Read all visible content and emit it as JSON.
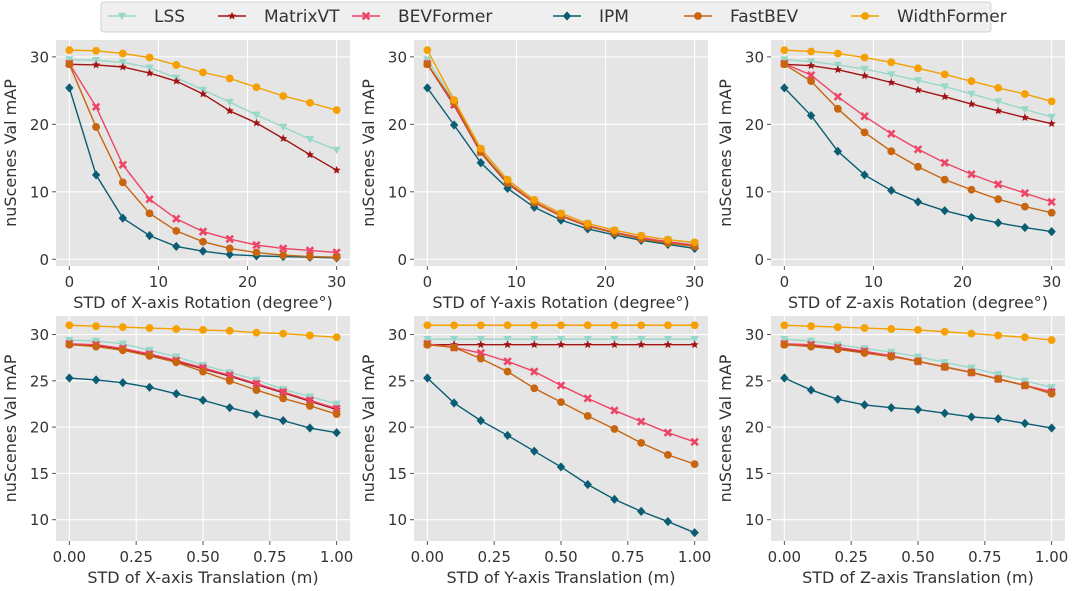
{
  "legend": [
    {
      "name": "LSS",
      "color": "#99d8c9",
      "marker": "triangle-down"
    },
    {
      "name": "MatrixVT",
      "color": "#a01414",
      "marker": "star"
    },
    {
      "name": "BEVFormer",
      "color": "#ee4466",
      "marker": "x"
    },
    {
      "name": "IPM",
      "color": "#0b5d73",
      "marker": "diamond"
    },
    {
      "name": "FastBEV",
      "color": "#c8650f",
      "marker": "circle"
    },
    {
      "name": "WidthFormer",
      "color": "#f5a000",
      "marker": "circle"
    }
  ],
  "chart_data": [
    {
      "type": "line",
      "xlabel": "STD of X-axis Rotation (degree°)",
      "ylabel": "nuScenes Val mAP",
      "x": [
        0,
        3,
        6,
        9,
        12,
        15,
        18,
        21,
        24,
        27,
        30
      ],
      "xticks": [
        0,
        10,
        20,
        30
      ],
      "xtick_labels": [
        "0",
        "10",
        "20",
        "30"
      ],
      "xlim": [
        -1.5,
        31.5
      ],
      "yticks": [
        0,
        10,
        20,
        30
      ],
      "ylim": [
        -1,
        32.5
      ],
      "grid": true,
      "series": [
        {
          "name": "LSS",
          "values": [
            29.6,
            29.5,
            29.2,
            28.4,
            26.9,
            25.1,
            23.3,
            21.4,
            19.6,
            17.8,
            16.2
          ]
        },
        {
          "name": "MatrixVT",
          "values": [
            28.9,
            28.8,
            28.5,
            27.6,
            26.4,
            24.5,
            22.0,
            20.2,
            17.9,
            15.5,
            13.2
          ]
        },
        {
          "name": "BEVFormer",
          "values": [
            29.0,
            22.6,
            14.0,
            8.9,
            6.0,
            4.1,
            3.0,
            2.1,
            1.6,
            1.3,
            1.0
          ]
        },
        {
          "name": "IPM",
          "values": [
            25.4,
            12.5,
            6.1,
            3.5,
            1.9,
            1.2,
            0.7,
            0.5,
            0.4,
            0.3,
            0.2
          ]
        },
        {
          "name": "FastBEV",
          "values": [
            28.9,
            19.6,
            11.4,
            6.8,
            4.2,
            2.6,
            1.6,
            1.0,
            0.6,
            0.4,
            0.3
          ]
        },
        {
          "name": "WidthFormer",
          "values": [
            31.0,
            30.9,
            30.5,
            29.9,
            28.8,
            27.7,
            26.8,
            25.5,
            24.2,
            23.2,
            22.1
          ]
        }
      ]
    },
    {
      "type": "line",
      "xlabel": "STD of Y-axis Rotation (degree°)",
      "ylabel": "nuScenes Val mAP",
      "x": [
        0,
        3,
        6,
        9,
        12,
        15,
        18,
        21,
        24,
        27,
        30
      ],
      "xticks": [
        0,
        10,
        20,
        30
      ],
      "xtick_labels": [
        "0",
        "10",
        "20",
        "30"
      ],
      "xlim": [
        -1.5,
        31.5
      ],
      "yticks": [
        0,
        10,
        20,
        30
      ],
      "ylim": [
        -1,
        32.5
      ],
      "grid": true,
      "series": [
        {
          "name": "LSS",
          "values": [
            29.6,
            23.4,
            16.3,
            11.7,
            8.8,
            6.8,
            5.3,
            4.3,
            3.5,
            2.9,
            2.4
          ]
        },
        {
          "name": "MatrixVT",
          "values": [
            28.9,
            22.8,
            15.8,
            11.2,
            8.4,
            6.4,
            4.9,
            3.9,
            3.1,
            2.5,
            2.0
          ]
        },
        {
          "name": "BEVFormer",
          "values": [
            29.0,
            22.9,
            15.9,
            11.4,
            8.5,
            6.5,
            5.0,
            4.0,
            3.2,
            2.6,
            2.1
          ]
        },
        {
          "name": "IPM",
          "values": [
            25.4,
            19.9,
            14.3,
            10.5,
            7.7,
            5.8,
            4.5,
            3.6,
            2.8,
            2.2,
            1.6
          ]
        },
        {
          "name": "FastBEV",
          "values": [
            28.9,
            23.2,
            15.9,
            11.3,
            8.4,
            6.4,
            4.9,
            3.9,
            3.0,
            2.4,
            1.9
          ]
        },
        {
          "name": "WidthFormer",
          "values": [
            31.0,
            23.6,
            16.4,
            11.8,
            8.8,
            6.8,
            5.3,
            4.3,
            3.5,
            2.9,
            2.5
          ]
        }
      ]
    },
    {
      "type": "line",
      "xlabel": "STD of Z-axis Rotation (degree°)",
      "ylabel": "nuScenes Val mAP",
      "x": [
        0,
        3,
        6,
        9,
        12,
        15,
        18,
        21,
        24,
        27,
        30
      ],
      "xticks": [
        0,
        10,
        20,
        30
      ],
      "xtick_labels": [
        "0",
        "10",
        "20",
        "30"
      ],
      "xlim": [
        -1.5,
        31.5
      ],
      "yticks": [
        0,
        10,
        20,
        30
      ],
      "ylim": [
        -1,
        32.5
      ],
      "grid": true,
      "series": [
        {
          "name": "LSS",
          "values": [
            29.6,
            29.3,
            28.8,
            28.2,
            27.4,
            26.5,
            25.6,
            24.5,
            23.4,
            22.2,
            21.1
          ]
        },
        {
          "name": "MatrixVT",
          "values": [
            28.9,
            28.7,
            28.1,
            27.2,
            26.2,
            25.1,
            24.1,
            23.0,
            22.0,
            21.0,
            20.1
          ]
        },
        {
          "name": "BEVFormer",
          "values": [
            29.0,
            27.3,
            24.1,
            21.2,
            18.6,
            16.3,
            14.3,
            12.6,
            11.1,
            9.8,
            8.5
          ]
        },
        {
          "name": "IPM",
          "values": [
            25.4,
            21.3,
            16.0,
            12.5,
            10.2,
            8.5,
            7.2,
            6.2,
            5.4,
            4.7,
            4.1
          ]
        },
        {
          "name": "FastBEV",
          "values": [
            28.9,
            26.4,
            22.3,
            18.8,
            16.0,
            13.7,
            11.8,
            10.3,
            8.9,
            7.8,
            6.9
          ]
        },
        {
          "name": "WidthFormer",
          "values": [
            31.0,
            30.8,
            30.5,
            29.9,
            29.2,
            28.3,
            27.4,
            26.4,
            25.4,
            24.5,
            23.4
          ]
        }
      ]
    },
    {
      "type": "line",
      "xlabel": "STD of X-axis Translation (m)",
      "ylabel": "nuScenes Val mAP",
      "x": [
        0,
        0.1,
        0.2,
        0.3,
        0.4,
        0.5,
        0.6,
        0.7,
        0.8,
        0.9,
        1.0
      ],
      "xticks": [
        0,
        0.25,
        0.5,
        0.75,
        1.0
      ],
      "xtick_labels": [
        "0.00",
        "0.25",
        "0.50",
        "0.75",
        "1.00"
      ],
      "xlim": [
        -0.05,
        1.05
      ],
      "yticks": [
        10,
        15,
        20,
        25,
        30
      ],
      "ylim": [
        7.7,
        32.0
      ],
      "grid": true,
      "series": [
        {
          "name": "LSS",
          "values": [
            29.4,
            29.3,
            29.0,
            28.3,
            27.6,
            26.7,
            25.9,
            25.1,
            24.1,
            23.3,
            22.5
          ]
        },
        {
          "name": "MatrixVT",
          "values": [
            28.9,
            28.8,
            28.4,
            27.8,
            27.1,
            26.3,
            25.5,
            24.6,
            23.7,
            22.8,
            21.9
          ]
        },
        {
          "name": "BEVFormer",
          "values": [
            29.0,
            28.9,
            28.5,
            27.9,
            27.2,
            26.4,
            25.6,
            24.7,
            23.8,
            22.9,
            22.0
          ]
        },
        {
          "name": "IPM",
          "values": [
            25.3,
            25.1,
            24.8,
            24.3,
            23.6,
            22.9,
            22.1,
            21.4,
            20.7,
            19.9,
            19.4
          ]
        },
        {
          "name": "FastBEV",
          "values": [
            28.9,
            28.7,
            28.3,
            27.7,
            27.0,
            26.0,
            25.0,
            24.0,
            23.1,
            22.3,
            21.4
          ]
        },
        {
          "name": "WidthFormer",
          "values": [
            31.0,
            30.9,
            30.8,
            30.7,
            30.6,
            30.5,
            30.4,
            30.2,
            30.1,
            29.9,
            29.7
          ]
        }
      ]
    },
    {
      "type": "line",
      "xlabel": "STD of Y-axis Translation (m)",
      "ylabel": "nuScenes Val mAP",
      "x": [
        0,
        0.1,
        0.2,
        0.3,
        0.4,
        0.5,
        0.6,
        0.7,
        0.8,
        0.9,
        1.0
      ],
      "xticks": [
        0,
        0.25,
        0.5,
        0.75,
        1.0
      ],
      "xtick_labels": [
        "0.00",
        "0.25",
        "0.50",
        "0.75",
        "1.00"
      ],
      "xlim": [
        -0.05,
        1.05
      ],
      "yticks": [
        10,
        15,
        20,
        25,
        30
      ],
      "ylim": [
        7.7,
        32.0
      ],
      "grid": true,
      "series": [
        {
          "name": "LSS",
          "values": [
            29.5,
            29.5,
            29.5,
            29.5,
            29.5,
            29.5,
            29.5,
            29.5,
            29.5,
            29.5,
            29.5
          ]
        },
        {
          "name": "MatrixVT",
          "values": [
            28.9,
            28.9,
            28.9,
            28.9,
            28.9,
            28.9,
            28.9,
            28.9,
            28.9,
            28.9,
            28.9
          ]
        },
        {
          "name": "BEVFormer",
          "values": [
            29.0,
            28.6,
            28.0,
            27.1,
            26.0,
            24.5,
            23.1,
            21.8,
            20.6,
            19.4,
            18.4
          ]
        },
        {
          "name": "IPM",
          "values": [
            25.3,
            22.6,
            20.7,
            19.1,
            17.4,
            15.7,
            13.8,
            12.2,
            10.9,
            9.8,
            8.6
          ]
        },
        {
          "name": "FastBEV",
          "values": [
            28.9,
            28.6,
            27.4,
            26.0,
            24.2,
            22.7,
            21.2,
            19.8,
            18.3,
            17.0,
            16.0
          ]
        },
        {
          "name": "WidthFormer",
          "values": [
            31.0,
            31.0,
            31.0,
            31.0,
            31.0,
            31.0,
            31.0,
            31.0,
            31.0,
            31.0,
            31.0
          ]
        }
      ]
    },
    {
      "type": "line",
      "xlabel": "STD of Z-axis Translation (m)",
      "ylabel": "nuScenes Val mAP",
      "x": [
        0,
        0.1,
        0.2,
        0.3,
        0.4,
        0.5,
        0.6,
        0.7,
        0.8,
        0.9,
        1.0
      ],
      "xticks": [
        0,
        0.25,
        0.5,
        0.75,
        1.0
      ],
      "xtick_labels": [
        "0.00",
        "0.25",
        "0.50",
        "0.75",
        "1.00"
      ],
      "xlim": [
        -0.05,
        1.05
      ],
      "yticks": [
        10,
        15,
        20,
        25,
        30
      ],
      "ylim": [
        7.7,
        32.0
      ],
      "grid": true,
      "series": [
        {
          "name": "LSS",
          "values": [
            29.5,
            29.3,
            28.9,
            28.5,
            28.1,
            27.6,
            27.0,
            26.4,
            25.7,
            25.0,
            24.3
          ]
        },
        {
          "name": "MatrixVT",
          "values": [
            28.9,
            28.8,
            28.5,
            28.1,
            27.7,
            27.1,
            26.5,
            25.9,
            25.2,
            24.5,
            23.8
          ]
        },
        {
          "name": "BEVFormer",
          "values": [
            29.0,
            28.9,
            28.6,
            28.2,
            27.7,
            27.1,
            26.5,
            25.9,
            25.2,
            24.5,
            23.8
          ]
        },
        {
          "name": "IPM",
          "values": [
            25.3,
            24.0,
            23.0,
            22.4,
            22.1,
            21.9,
            21.5,
            21.1,
            20.9,
            20.4,
            19.9
          ]
        },
        {
          "name": "FastBEV",
          "values": [
            28.9,
            28.7,
            28.4,
            28.0,
            27.6,
            27.1,
            26.5,
            25.9,
            25.2,
            24.5,
            23.6
          ]
        },
        {
          "name": "WidthFormer",
          "values": [
            31.0,
            30.9,
            30.8,
            30.7,
            30.6,
            30.5,
            30.3,
            30.1,
            29.9,
            29.7,
            29.4
          ]
        }
      ]
    }
  ]
}
